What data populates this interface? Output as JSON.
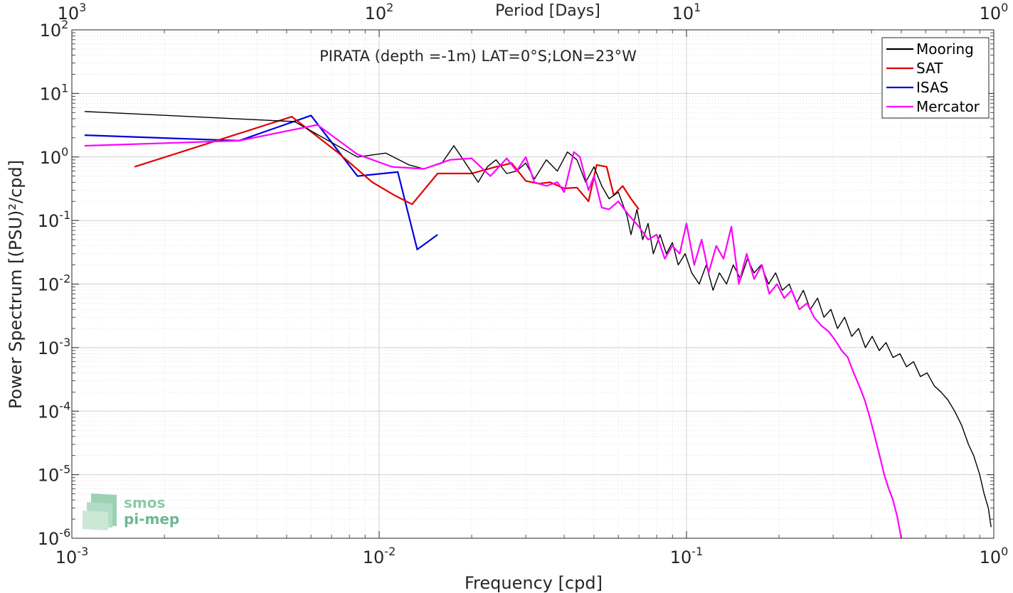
{
  "chart_data": {
    "type": "line",
    "title": "PIRATA (depth =-1m) LAT=0°S;LON=23°W",
    "xlabel": "Frequency [cpd]",
    "ylabel": "Power Spectrum [(PSU)²/cpd]",
    "top_xlabel": "Period [Days]",
    "xscale": "log",
    "yscale": "log",
    "xlim": [
      0.001,
      1
    ],
    "ylim": [
      1e-06,
      100
    ],
    "x_ticks": [
      {
        "value": 0.001,
        "base": "10",
        "exp": "-3"
      },
      {
        "value": 0.01,
        "base": "10",
        "exp": "-2"
      },
      {
        "value": 0.1,
        "base": "10",
        "exp": "-1"
      },
      {
        "value": 1,
        "base": "10",
        "exp": "0"
      }
    ],
    "top_ticks": [
      {
        "value": 0.001,
        "base": "10",
        "exp": "3"
      },
      {
        "value": 0.01,
        "base": "10",
        "exp": "2"
      },
      {
        "value": 0.1,
        "base": "10",
        "exp": "1"
      },
      {
        "value": 1,
        "base": "10",
        "exp": "0"
      }
    ],
    "y_ticks": [
      {
        "value": 1e-06,
        "base": "10",
        "exp": "-6"
      },
      {
        "value": 1e-05,
        "base": "10",
        "exp": "-5"
      },
      {
        "value": 0.0001,
        "base": "10",
        "exp": "-4"
      },
      {
        "value": 0.001,
        "base": "10",
        "exp": "-3"
      },
      {
        "value": 0.01,
        "base": "10",
        "exp": "-2"
      },
      {
        "value": 0.1,
        "base": "10",
        "exp": "-1"
      },
      {
        "value": 1,
        "base": "10",
        "exp": "0"
      },
      {
        "value": 10,
        "base": "10",
        "exp": "1"
      },
      {
        "value": 100,
        "base": "10",
        "exp": "2"
      }
    ],
    "grid": true,
    "legend_position": "top-right",
    "series": [
      {
        "name": "Mooring",
        "color": "#000000",
        "x": [
          0.0011,
          0.0053,
          0.0085,
          0.0105,
          0.0125,
          0.014,
          0.016,
          0.0175,
          0.0188,
          0.021,
          0.0225,
          0.024,
          0.026,
          0.028,
          0.03,
          0.032,
          0.035,
          0.038,
          0.041,
          0.044,
          0.047,
          0.05,
          0.053,
          0.056,
          0.06,
          0.064,
          0.066,
          0.069,
          0.072,
          0.075,
          0.078,
          0.082,
          0.086,
          0.09,
          0.094,
          0.099,
          0.104,
          0.11,
          0.116,
          0.122,
          0.128,
          0.135,
          0.142,
          0.15,
          0.158,
          0.166,
          0.175,
          0.185,
          0.195,
          0.205,
          0.216,
          0.228,
          0.24,
          0.253,
          0.267,
          0.28,
          0.295,
          0.31,
          0.327,
          0.345,
          0.363,
          0.382,
          0.402,
          0.424,
          0.446,
          0.47,
          0.495,
          0.52,
          0.548,
          0.577,
          0.607,
          0.64,
          0.673,
          0.709,
          0.746,
          0.786,
          0.827,
          0.86,
          0.9,
          0.93,
          0.96,
          0.98
        ],
        "values": [
          5.2,
          3.6,
          1.0,
          1.15,
          0.75,
          0.65,
          0.8,
          1.5,
          0.9,
          0.4,
          0.7,
          0.9,
          0.55,
          0.6,
          0.8,
          0.45,
          0.9,
          0.6,
          1.2,
          0.9,
          0.4,
          0.7,
          0.35,
          0.22,
          0.28,
          0.12,
          0.06,
          0.15,
          0.05,
          0.09,
          0.03,
          0.06,
          0.03,
          0.045,
          0.02,
          0.03,
          0.015,
          0.01,
          0.02,
          0.008,
          0.015,
          0.01,
          0.02,
          0.012,
          0.025,
          0.015,
          0.02,
          0.01,
          0.015,
          0.008,
          0.01,
          0.005,
          0.008,
          0.004,
          0.006,
          0.003,
          0.004,
          0.002,
          0.003,
          0.0015,
          0.002,
          0.001,
          0.0015,
          0.0009,
          0.0012,
          0.0007,
          0.0008,
          0.0005,
          0.0006,
          0.00035,
          0.0004,
          0.00025,
          0.0002,
          0.00015,
          0.0001,
          6e-05,
          3e-05,
          2e-05,
          1e-05,
          5e-06,
          3e-06,
          1.5e-06
        ]
      },
      {
        "name": "SAT",
        "color": "#e00000",
        "x": [
          0.0016,
          0.0052,
          0.0073,
          0.0095,
          0.0112,
          0.0128,
          0.0155,
          0.0175,
          0.02,
          0.024,
          0.027,
          0.03,
          0.033,
          0.036,
          0.04,
          0.044,
          0.048,
          0.051,
          0.055,
          0.058,
          0.062,
          0.066,
          0.07
        ],
        "values": [
          0.7,
          4.3,
          1.2,
          0.4,
          0.25,
          0.18,
          0.55,
          0.55,
          0.55,
          0.7,
          0.8,
          0.42,
          0.38,
          0.4,
          0.32,
          0.33,
          0.2,
          0.75,
          0.7,
          0.25,
          0.35,
          0.22,
          0.15
        ]
      },
      {
        "name": "ISAS",
        "color": "#0000e0",
        "x": [
          0.0011,
          0.0035,
          0.006,
          0.0085,
          0.0115,
          0.0133,
          0.0155
        ],
        "values": [
          2.2,
          1.8,
          4.5,
          0.5,
          0.58,
          0.035,
          0.06
        ]
      },
      {
        "name": "Mercator",
        "color": "#ff00ff",
        "x": [
          0.0011,
          0.0035,
          0.0063,
          0.0085,
          0.011,
          0.014,
          0.017,
          0.02,
          0.023,
          0.026,
          0.028,
          0.03,
          0.032,
          0.035,
          0.038,
          0.04,
          0.043,
          0.045,
          0.048,
          0.05,
          0.053,
          0.056,
          0.06,
          0.065,
          0.07,
          0.075,
          0.08,
          0.085,
          0.09,
          0.095,
          0.1,
          0.106,
          0.112,
          0.118,
          0.125,
          0.132,
          0.14,
          0.148,
          0.157,
          0.166,
          0.176,
          0.186,
          0.197,
          0.208,
          0.22,
          0.233,
          0.247,
          0.26,
          0.275,
          0.29,
          0.305,
          0.32,
          0.335,
          0.35,
          0.365,
          0.38,
          0.395,
          0.41,
          0.425,
          0.44,
          0.455,
          0.47,
          0.485,
          0.5
        ],
        "values": [
          1.5,
          1.8,
          3.2,
          1.1,
          0.7,
          0.65,
          0.9,
          0.95,
          0.5,
          0.95,
          0.6,
          1.0,
          0.4,
          0.35,
          0.4,
          0.28,
          1.2,
          1.0,
          0.3,
          0.5,
          0.16,
          0.15,
          0.2,
          0.12,
          0.08,
          0.05,
          0.06,
          0.025,
          0.04,
          0.03,
          0.09,
          0.02,
          0.05,
          0.015,
          0.04,
          0.025,
          0.08,
          0.01,
          0.03,
          0.012,
          0.02,
          0.007,
          0.01,
          0.006,
          0.008,
          0.004,
          0.005,
          0.003,
          0.0022,
          0.0018,
          0.0013,
          0.0009,
          0.0007,
          0.0004,
          0.00025,
          0.00015,
          8e-05,
          4e-05,
          2e-05,
          1e-05,
          6e-06,
          4e-06,
          2.2e-06,
          1e-06
        ]
      }
    ]
  },
  "logo": {
    "line1": "smos",
    "line2": "pi-mep",
    "color": "#6db894"
  }
}
